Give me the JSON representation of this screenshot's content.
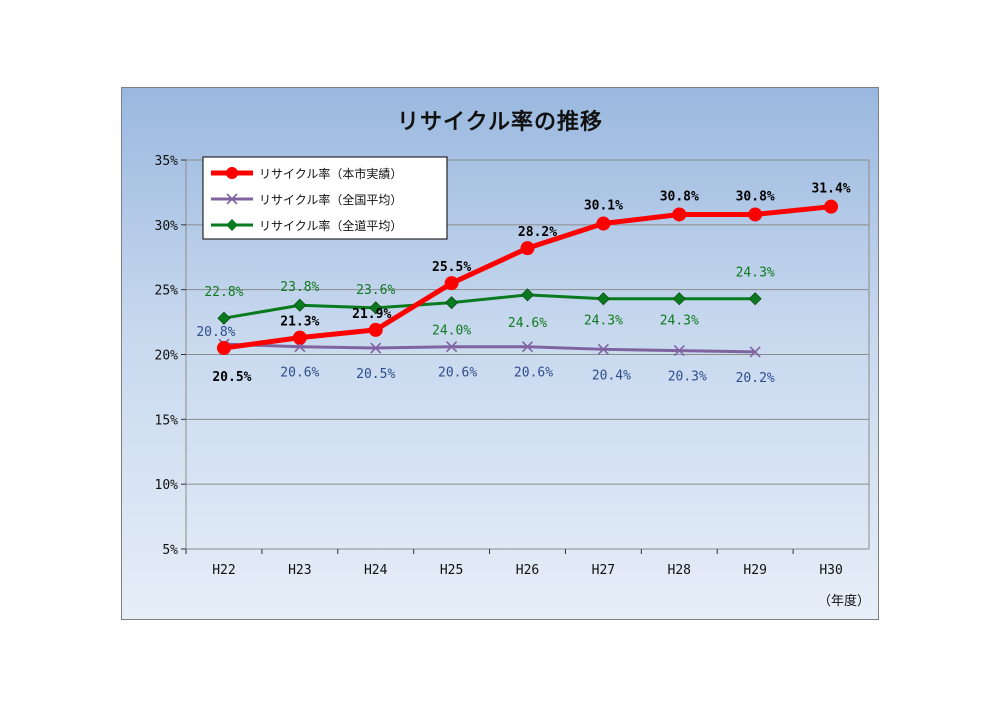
{
  "chart_data": {
    "type": "line",
    "title": "リサイクル率の推移",
    "xlabel": "（年度）",
    "ylabel": "",
    "ylim": [
      5,
      35
    ],
    "yticks": [
      "5%",
      "10%",
      "15%",
      "20%",
      "25%",
      "30%",
      "35%"
    ],
    "ytick_values": [
      5,
      10,
      15,
      20,
      25,
      30,
      35
    ],
    "categories": [
      "H22",
      "H23",
      "H24",
      "H25",
      "H26",
      "H27",
      "H28",
      "H29",
      "H30"
    ],
    "grid": true,
    "legend_position": "top-left",
    "series": [
      {
        "name": "リサイクル率（本市実績）",
        "color": "#ff0000",
        "marker": "circle",
        "values": [
          20.5,
          21.3,
          21.9,
          25.5,
          28.2,
          30.1,
          30.8,
          30.8,
          31.4
        ],
        "labels": [
          "20.5%",
          "21.3%",
          "21.9%",
          "25.5%",
          "28.2%",
          "30.1%",
          "30.8%",
          "30.8%",
          "31.4%"
        ],
        "label_color": "#000000"
      },
      {
        "name": "リサイクル率（全国平均）",
        "color": "#8064a2",
        "marker": "x",
        "values": [
          20.8,
          20.6,
          20.5,
          20.6,
          20.6,
          20.4,
          20.3,
          20.2,
          null
        ],
        "labels": [
          "20.8%",
          "20.6%",
          "20.5%",
          "20.6%",
          "20.6%",
          "20.4%",
          "20.3%",
          "20.2%",
          null
        ],
        "label_color": "#2e4d8a"
      },
      {
        "name": "リサイクル率（全道平均）",
        "color": "#0a7a1f",
        "marker": "diamond",
        "values": [
          22.8,
          23.8,
          23.6,
          24.0,
          24.6,
          24.3,
          24.3,
          24.3,
          null
        ],
        "labels": [
          "22.8%",
          "23.8%",
          "23.6%",
          "24.0%",
          "24.6%",
          "24.3%",
          "24.3%",
          "24.3%",
          null
        ],
        "label_color": "#0f7a1f"
      }
    ]
  }
}
